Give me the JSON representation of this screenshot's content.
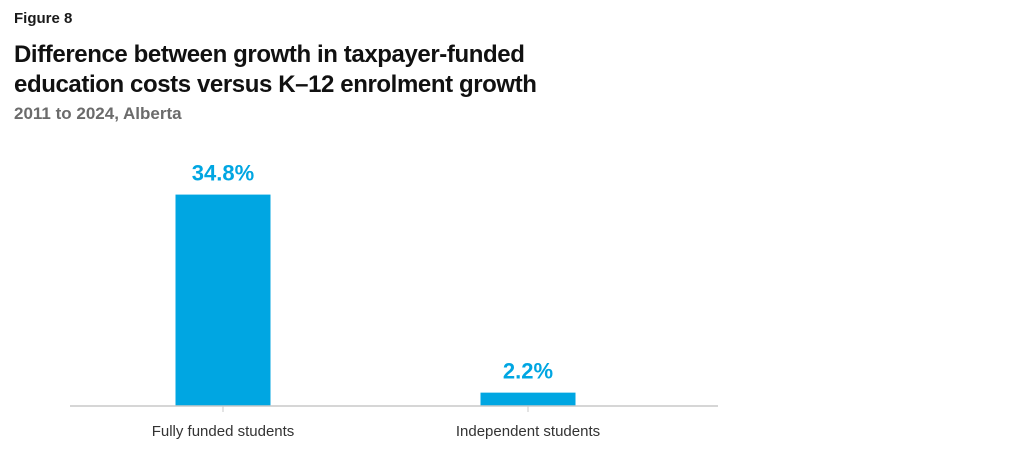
{
  "figure_label": "Figure 8",
  "colors": {
    "bar": "#00a6e2",
    "axis": "#c8c8c8",
    "title": "#111111",
    "subtitle": "#6b6b6b"
  },
  "chart_data": {
    "type": "bar",
    "title": "Difference between growth in taxpayer-funded education costs versus K–12 enrolment growth",
    "subtitle": "2011 to 2024, Alberta",
    "xlabel": "",
    "ylabel": "",
    "categories": [
      "Fully funded students",
      "Independent students"
    ],
    "values": [
      34.8,
      2.2
    ],
    "data_labels": [
      "34.8%",
      "2.2%"
    ],
    "ylim": [
      0,
      40
    ],
    "grid": false,
    "legend": "none"
  }
}
